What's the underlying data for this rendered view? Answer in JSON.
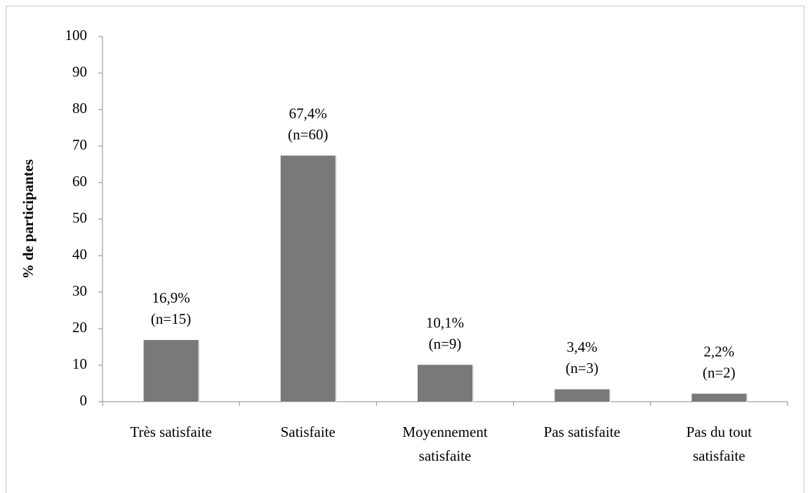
{
  "chart_data": {
    "type": "bar",
    "y_label": "% de participantes",
    "categories": [
      [
        "Très satisfaite"
      ],
      [
        "Satisfaite"
      ],
      [
        "Moyennement",
        "satisfaite"
      ],
      [
        "Pas satisfaite"
      ],
      [
        "Pas du tout",
        "satisfaite"
      ]
    ],
    "values": [
      16.9,
      67.4,
      10.1,
      3.4,
      2.2
    ],
    "value_labels": [
      "16,9%",
      "67,4%",
      "10,1%",
      "3,4%",
      "2,2%"
    ],
    "counts": [
      15,
      60,
      9,
      3,
      2
    ],
    "count_labels": [
      "(n=15)",
      "(n=60)",
      "(n=9)",
      "(n=3)",
      "(n=2)"
    ],
    "color": "#797979",
    "ylim": [
      0,
      100
    ],
    "yticks": [
      0,
      10,
      20,
      30,
      40,
      50,
      60,
      70,
      80,
      90,
      100
    ],
    "grid": false
  }
}
